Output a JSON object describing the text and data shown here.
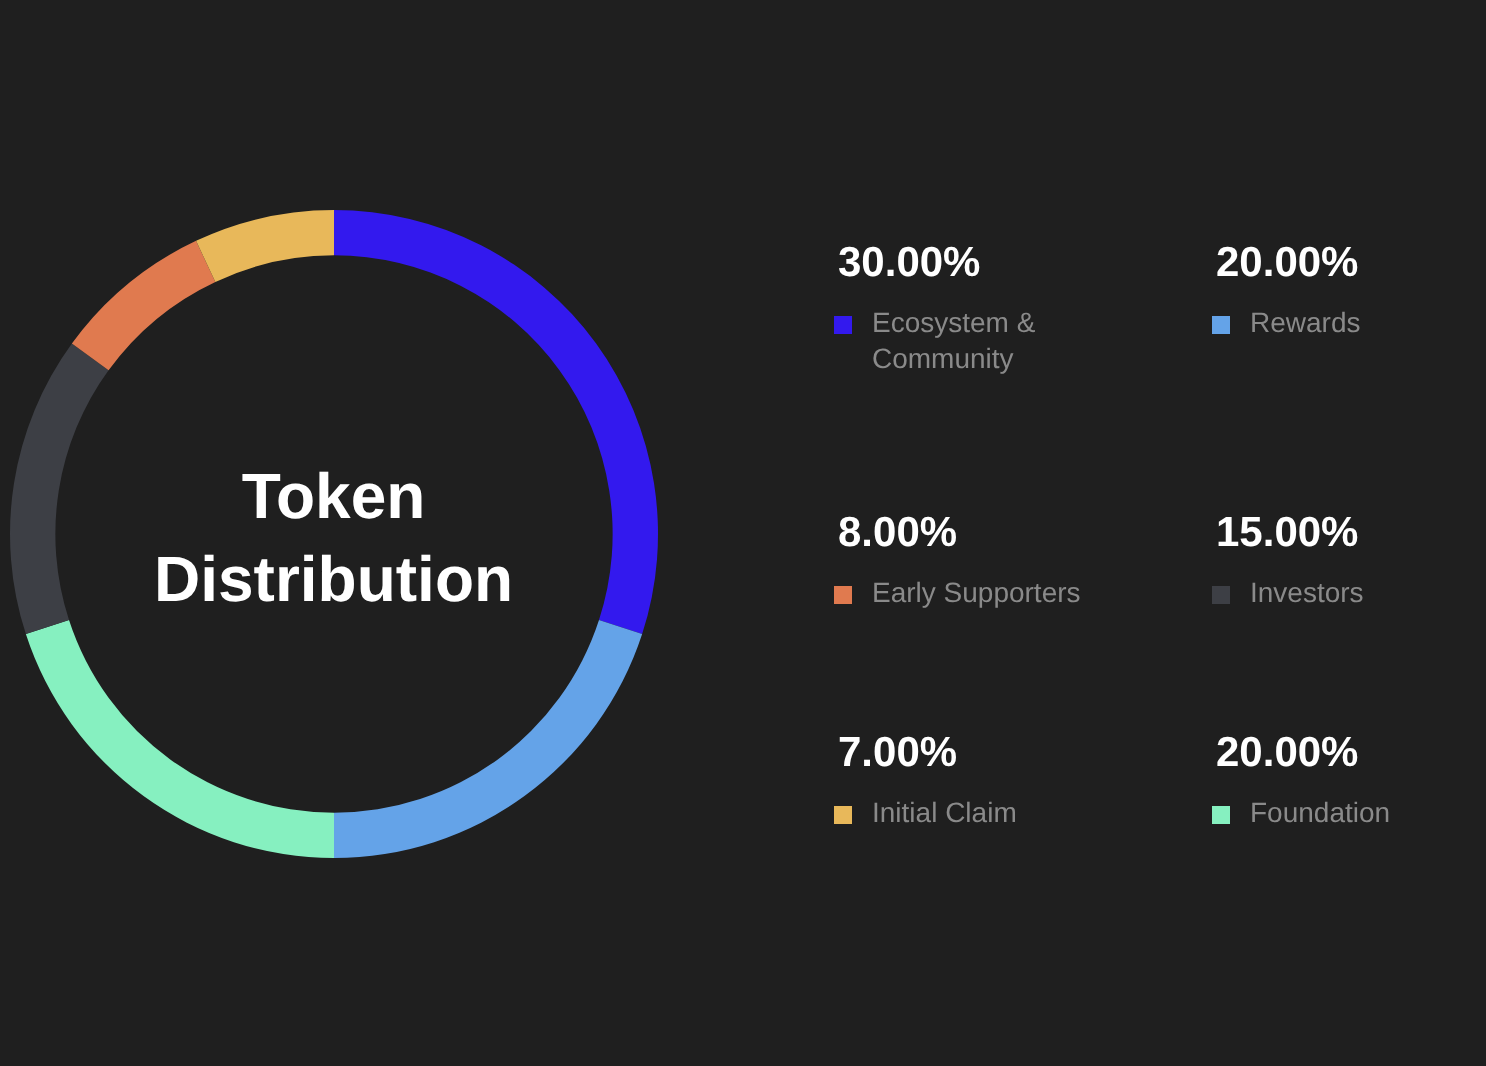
{
  "chart_data": {
    "type": "donut",
    "title": "Token Distribution",
    "categories": [
      "Ecosystem & Community",
      "Rewards",
      "Foundation",
      "Investors",
      "Early Supporters",
      "Initial Claim"
    ],
    "values": [
      30,
      20,
      20,
      15,
      8,
      7
    ],
    "colors": [
      "#3319ee",
      "#64a3e8",
      "#86f0c0",
      "#3d3f45",
      "#e07a4f",
      "#e8b85a"
    ],
    "value_labels": [
      "30.00%",
      "20.00%",
      "20.00%",
      "15.00%",
      "8.00%",
      "7.00%"
    ],
    "legend": "right"
  }
}
